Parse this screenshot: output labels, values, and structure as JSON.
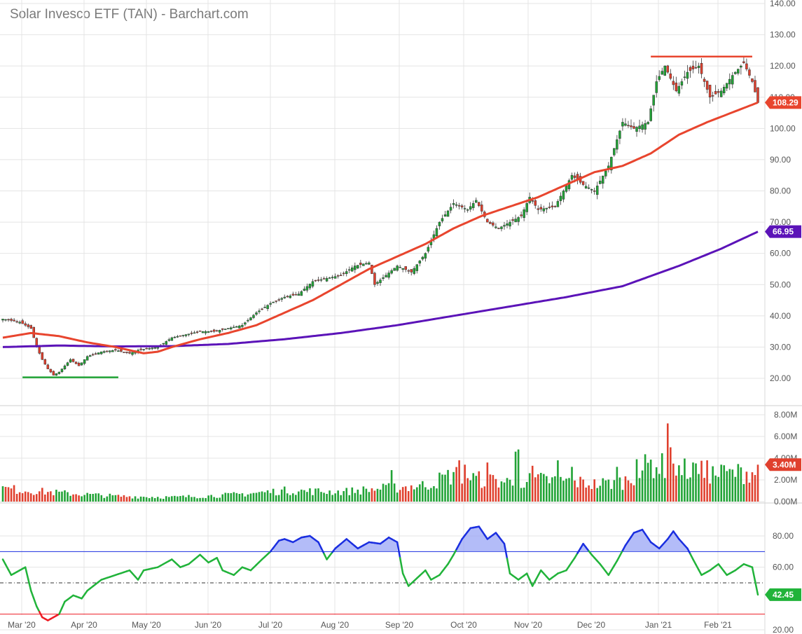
{
  "title": "Solar Invesco ETF (TAN) - Barchart.com",
  "colors": {
    "up": "#21a336",
    "down": "#e0402e",
    "sma50": "#e8452e",
    "sma200": "#5b13b8",
    "rsi_line": "#21b33a",
    "rsi_over": "#1a2ee0",
    "rsi_under": "#ee1c24",
    "grid": "#e4e4e4"
  },
  "chart_data": [
    {
      "type": "candlestick",
      "title": "Solar Invesco ETF (TAN) - Barchart.com",
      "ylim": [
        10,
        140
      ],
      "y_ticks": [
        "20.00",
        "30.00",
        "40.00",
        "50.00",
        "60.00",
        "70.00",
        "80.00",
        "90.00",
        "100.00",
        "110.00",
        "120.00",
        "130.00",
        "140.00"
      ],
      "x_labels": [
        "Mar '20",
        "Apr '20",
        "May '20",
        "Jun '20",
        "Jul '20",
        "Aug '20",
        "Sep '20",
        "Oct '20",
        "Nov '20",
        "Dec '20",
        "Jan '21",
        "Feb '21"
      ],
      "price_anchors": [
        [
          0,
          39
        ],
        [
          6,
          38
        ],
        [
          10,
          36
        ],
        [
          12,
          30
        ],
        [
          14,
          26
        ],
        [
          16,
          23
        ],
        [
          18,
          21
        ],
        [
          20,
          22
        ],
        [
          24,
          26
        ],
        [
          27,
          24
        ],
        [
          30,
          27
        ],
        [
          35,
          28.5
        ],
        [
          40,
          29
        ],
        [
          45,
          28
        ],
        [
          48,
          29
        ],
        [
          55,
          30
        ],
        [
          60,
          33
        ],
        [
          65,
          34
        ],
        [
          70,
          35
        ],
        [
          75,
          35
        ],
        [
          80,
          36
        ],
        [
          85,
          37
        ],
        [
          90,
          41
        ],
        [
          95,
          44
        ],
        [
          100,
          46
        ],
        [
          105,
          47
        ],
        [
          110,
          51
        ],
        [
          115,
          52
        ],
        [
          120,
          53
        ],
        [
          125,
          56
        ],
        [
          130,
          57
        ],
        [
          132,
          50
        ],
        [
          136,
          53
        ],
        [
          140,
          56
        ],
        [
          145,
          54
        ],
        [
          150,
          60
        ],
        [
          155,
          70
        ],
        [
          160,
          76
        ],
        [
          165,
          74
        ],
        [
          168,
          77
        ],
        [
          172,
          70
        ],
        [
          176,
          68
        ],
        [
          180,
          70
        ],
        [
          184,
          72
        ],
        [
          187,
          78
        ],
        [
          190,
          74
        ],
        [
          196,
          75
        ],
        [
          202,
          85
        ],
        [
          206,
          82
        ],
        [
          210,
          80
        ],
        [
          215,
          88
        ],
        [
          220,
          102
        ],
        [
          224,
          100
        ],
        [
          229,
          102
        ],
        [
          232,
          115
        ],
        [
          235,
          120
        ],
        [
          239,
          112
        ],
        [
          243,
          118
        ],
        [
          247,
          120
        ],
        [
          251,
          110
        ],
        [
          255,
          112
        ],
        [
          259,
          117
        ],
        [
          263,
          121
        ],
        [
          266,
          115
        ],
        [
          268,
          108.29
        ]
      ],
      "sma50": {
        "name": "",
        "last": "108.29",
        "anchors": [
          [
            0,
            33
          ],
          [
            10,
            34.5
          ],
          [
            20,
            33.5
          ],
          [
            30,
            31.5
          ],
          [
            40,
            30
          ],
          [
            45,
            29
          ],
          [
            50,
            28
          ],
          [
            55,
            28.5
          ],
          [
            60,
            30
          ],
          [
            70,
            32.5
          ],
          [
            80,
            34.5
          ],
          [
            90,
            37
          ],
          [
            100,
            41
          ],
          [
            110,
            45
          ],
          [
            120,
            50
          ],
          [
            130,
            55
          ],
          [
            140,
            59
          ],
          [
            150,
            63
          ],
          [
            160,
            68
          ],
          [
            170,
            72
          ],
          [
            180,
            75
          ],
          [
            190,
            78
          ],
          [
            200,
            82
          ],
          [
            210,
            86
          ],
          [
            220,
            88
          ],
          [
            230,
            92
          ],
          [
            240,
            98
          ],
          [
            250,
            102
          ],
          [
            260,
            105.5
          ],
          [
            268,
            108.29
          ]
        ]
      },
      "sma200": {
        "name": "",
        "last": "66.95",
        "anchors": [
          [
            0,
            30
          ],
          [
            20,
            30.5
          ],
          [
            40,
            30.2
          ],
          [
            60,
            30.3
          ],
          [
            80,
            31
          ],
          [
            100,
            32.5
          ],
          [
            120,
            34.5
          ],
          [
            140,
            37
          ],
          [
            160,
            40
          ],
          [
            180,
            43
          ],
          [
            200,
            46
          ],
          [
            220,
            49.5
          ],
          [
            240,
            56
          ],
          [
            255,
            61.5
          ],
          [
            268,
            66.95
          ]
        ]
      },
      "support_line": {
        "x": [
          7,
          41
        ],
        "y": 20.3
      },
      "resistance_line": {
        "x": [
          230,
          266
        ],
        "y": 123
      }
    },
    {
      "type": "bar",
      "title": "",
      "ylim": [
        0,
        8
      ],
      "y_ticks": [
        "0.00M",
        "2.00M",
        "4.00M",
        "6.00M",
        "8.00M"
      ],
      "last": "3.40M",
      "anchors": [
        [
          0,
          1.2
        ],
        [
          20,
          0.8
        ],
        [
          40,
          0.5
        ],
        [
          60,
          0.4
        ],
        [
          80,
          0.6
        ],
        [
          100,
          1.0
        ],
        [
          120,
          0.9
        ],
        [
          135,
          1.2
        ],
        [
          150,
          1.5
        ],
        [
          160,
          2.5
        ],
        [
          170,
          2.0
        ],
        [
          180,
          1.8
        ],
        [
          190,
          2.0
        ],
        [
          200,
          1.9
        ],
        [
          210,
          1.6
        ],
        [
          220,
          1.8
        ],
        [
          225,
          2.6
        ],
        [
          230,
          3.5
        ],
        [
          235,
          3.2
        ],
        [
          245,
          2.8
        ],
        [
          255,
          2.5
        ],
        [
          268,
          2.8
        ]
      ],
      "spikes": [
        [
          138,
          2.9
        ],
        [
          162,
          3.8
        ],
        [
          164,
          3.4
        ],
        [
          172,
          3.6
        ],
        [
          182,
          4.6
        ],
        [
          183,
          4.8
        ],
        [
          188,
          3.3
        ],
        [
          197,
          3.8
        ],
        [
          202,
          3.2
        ],
        [
          218,
          3.2
        ],
        [
          225,
          3.9
        ],
        [
          236,
          7.2
        ],
        [
          237,
          5.0
        ],
        [
          238,
          3.5
        ],
        [
          245,
          3.6
        ],
        [
          250,
          3.8
        ],
        [
          255,
          3.4
        ],
        [
          268,
          3.4
        ]
      ]
    },
    {
      "type": "line",
      "title": "",
      "ylim": [
        15,
        95
      ],
      "y_ticks": [
        "20.00",
        "60.00",
        "80.00"
      ],
      "overbought": 70,
      "oversold": 30,
      "midline": 50,
      "last": "42.45",
      "anchors": [
        [
          0,
          65
        ],
        [
          3,
          55
        ],
        [
          6,
          58
        ],
        [
          8,
          60
        ],
        [
          10,
          45
        ],
        [
          12,
          35
        ],
        [
          14,
          28
        ],
        [
          16,
          26
        ],
        [
          18,
          28
        ],
        [
          20,
          30
        ],
        [
          22,
          38
        ],
        [
          25,
          42
        ],
        [
          28,
          40
        ],
        [
          30,
          45
        ],
        [
          35,
          52
        ],
        [
          40,
          55
        ],
        [
          45,
          58
        ],
        [
          48,
          52
        ],
        [
          50,
          58
        ],
        [
          55,
          60
        ],
        [
          60,
          65
        ],
        [
          63,
          60
        ],
        [
          66,
          62
        ],
        [
          70,
          68
        ],
        [
          73,
          63
        ],
        [
          76,
          66
        ],
        [
          78,
          58
        ],
        [
          82,
          55
        ],
        [
          85,
          60
        ],
        [
          88,
          58
        ],
        [
          92,
          65
        ],
        [
          95,
          70
        ],
        [
          98,
          77
        ],
        [
          100,
          78
        ],
        [
          103,
          76
        ],
        [
          106,
          79
        ],
        [
          109,
          80
        ],
        [
          112,
          76
        ],
        [
          115,
          65
        ],
        [
          118,
          72
        ],
        [
          122,
          78
        ],
        [
          126,
          72
        ],
        [
          130,
          76
        ],
        [
          134,
          75
        ],
        [
          137,
          79
        ],
        [
          140,
          76
        ],
        [
          142,
          56
        ],
        [
          144,
          48
        ],
        [
          147,
          53
        ],
        [
          150,
          58
        ],
        [
          152,
          52
        ],
        [
          155,
          55
        ],
        [
          158,
          62
        ],
        [
          160,
          68
        ],
        [
          163,
          78
        ],
        [
          166,
          85
        ],
        [
          169,
          86
        ],
        [
          172,
          78
        ],
        [
          175,
          82
        ],
        [
          178,
          75
        ],
        [
          180,
          56
        ],
        [
          183,
          52
        ],
        [
          186,
          56
        ],
        [
          188,
          48
        ],
        [
          191,
          58
        ],
        [
          194,
          52
        ],
        [
          197,
          56
        ],
        [
          200,
          58
        ],
        [
          203,
          66
        ],
        [
          206,
          75
        ],
        [
          209,
          68
        ],
        [
          212,
          62
        ],
        [
          215,
          55
        ],
        [
          218,
          64
        ],
        [
          221,
          74
        ],
        [
          224,
          82
        ],
        [
          227,
          84
        ],
        [
          230,
          76
        ],
        [
          233,
          72
        ],
        [
          236,
          78
        ],
        [
          238,
          83
        ],
        [
          240,
          78
        ],
        [
          243,
          72
        ],
        [
          245,
          65
        ],
        [
          248,
          55
        ],
        [
          251,
          58
        ],
        [
          254,
          62
        ],
        [
          257,
          55
        ],
        [
          260,
          58
        ],
        [
          263,
          62
        ],
        [
          266,
          60
        ],
        [
          268,
          42.45
        ]
      ]
    }
  ]
}
